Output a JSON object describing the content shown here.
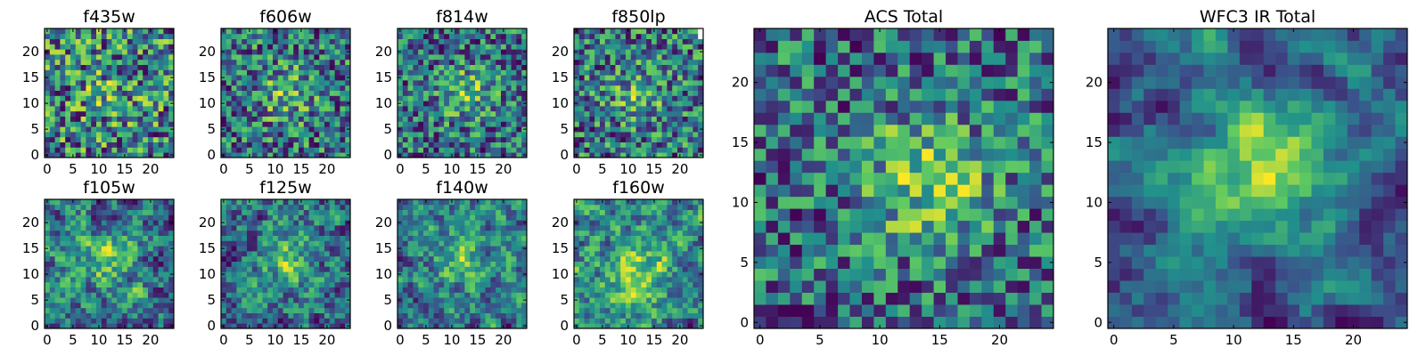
{
  "figure": {
    "description_layout": "2x4 grid of small per-filter cutouts plus two large total cutouts",
    "colormap": "viridis",
    "colormap_stops": [
      "#440154",
      "#3b528b",
      "#21918c",
      "#5ec962",
      "#fde725"
    ]
  },
  "chart_data": [
    {
      "type": "heatmap",
      "title": "f435w",
      "xlabel": "",
      "ylabel": "",
      "grid": [
        25,
        25
      ],
      "xlim": [
        0,
        24
      ],
      "ylim": [
        0,
        24
      ],
      "x_ticks": [
        "0",
        "5",
        "10",
        "15",
        "20"
      ],
      "y_ticks": [
        "0",
        "5",
        "10",
        "15",
        "20"
      ],
      "seed": 11,
      "smooth": 0,
      "blob": 0.15,
      "center": [
        12,
        12
      ]
    },
    {
      "type": "heatmap",
      "title": "f606w",
      "xlabel": "",
      "ylabel": "",
      "grid": [
        25,
        25
      ],
      "xlim": [
        0,
        24
      ],
      "ylim": [
        0,
        24
      ],
      "x_ticks": [
        "0",
        "5",
        "10",
        "15",
        "20"
      ],
      "y_ticks": [
        "0",
        "5",
        "10",
        "15",
        "20"
      ],
      "seed": 23,
      "smooth": 0,
      "blob": 0.35,
      "center": [
        12,
        12
      ]
    },
    {
      "type": "heatmap",
      "title": "f814w",
      "xlabel": "",
      "ylabel": "",
      "grid": [
        25,
        25
      ],
      "xlim": [
        0,
        24
      ],
      "ylim": [
        0,
        24
      ],
      "x_ticks": [
        "0",
        "5",
        "10",
        "15",
        "20"
      ],
      "y_ticks": [
        "0",
        "5",
        "10",
        "15",
        "20"
      ],
      "seed": 37,
      "smooth": 0,
      "blob": 0.4,
      "center": [
        13,
        12
      ]
    },
    {
      "type": "heatmap",
      "title": "f850lp",
      "xlabel": "",
      "ylabel": "",
      "grid": [
        25,
        25
      ],
      "xlim": [
        0,
        24
      ],
      "ylim": [
        0,
        24
      ],
      "x_ticks": [
        "0",
        "5",
        "10",
        "15",
        "20"
      ],
      "y_ticks": [
        "0",
        "5",
        "10",
        "15",
        "20"
      ],
      "seed": 41,
      "smooth": 0,
      "blob": 0.3,
      "center": [
        12,
        12
      ],
      "masked_top_right": true
    },
    {
      "type": "heatmap",
      "title": "f105w",
      "xlabel": "",
      "ylabel": "",
      "grid": [
        25,
        25
      ],
      "xlim": [
        0,
        24
      ],
      "ylim": [
        0,
        24
      ],
      "x_ticks": [
        "0",
        "5",
        "10",
        "15",
        "20"
      ],
      "y_ticks": [
        "0",
        "5",
        "10",
        "15",
        "20"
      ],
      "seed": 53,
      "smooth": 1,
      "blob": 0.25,
      "center": [
        12,
        13
      ]
    },
    {
      "type": "heatmap",
      "title": "f125w",
      "xlabel": "",
      "ylabel": "",
      "grid": [
        25,
        25
      ],
      "xlim": [
        0,
        24
      ],
      "ylim": [
        0,
        24
      ],
      "x_ticks": [
        "0",
        "5",
        "10",
        "15",
        "20"
      ],
      "y_ticks": [
        "0",
        "5",
        "10",
        "15",
        "20"
      ],
      "seed": 67,
      "smooth": 1,
      "blob": 0.3,
      "center": [
        12,
        13
      ]
    },
    {
      "type": "heatmap",
      "title": "f140w",
      "xlabel": "",
      "ylabel": "",
      "grid": [
        25,
        25
      ],
      "xlim": [
        0,
        24
      ],
      "ylim": [
        0,
        24
      ],
      "x_ticks": [
        "0",
        "5",
        "10",
        "15",
        "20"
      ],
      "y_ticks": [
        "0",
        "5",
        "10",
        "15",
        "20"
      ],
      "seed": 79,
      "smooth": 1,
      "blob": 0.3,
      "center": [
        12,
        13
      ]
    },
    {
      "type": "heatmap",
      "title": "f160w",
      "xlabel": "",
      "ylabel": "",
      "grid": [
        25,
        25
      ],
      "xlim": [
        0,
        24
      ],
      "ylim": [
        0,
        24
      ],
      "x_ticks": [
        "0",
        "5",
        "10",
        "15",
        "20"
      ],
      "y_ticks": [
        "0",
        "5",
        "10",
        "15",
        "20"
      ],
      "seed": 83,
      "smooth": 1,
      "blob": 0.45,
      "center": [
        12,
        10
      ]
    },
    {
      "type": "heatmap",
      "title": "ACS Total",
      "xlabel": "",
      "ylabel": "",
      "grid": [
        25,
        25
      ],
      "xlim": [
        0,
        24
      ],
      "ylim": [
        0,
        24
      ],
      "x_ticks": [
        "0",
        "5",
        "10",
        "15",
        "20"
      ],
      "y_ticks": [
        "0",
        "5",
        "10",
        "15",
        "20"
      ],
      "seed": 97,
      "smooth": 0,
      "blob": 0.55,
      "center": [
        14,
        12
      ]
    },
    {
      "type": "heatmap",
      "title": "WFC3 IR Total",
      "xlabel": "",
      "ylabel": "",
      "grid": [
        25,
        25
      ],
      "xlim": [
        0,
        24
      ],
      "ylim": [
        0,
        24
      ],
      "x_ticks": [
        "0",
        "5",
        "10",
        "15",
        "20"
      ],
      "y_ticks": [
        "0",
        "5",
        "10",
        "15",
        "20"
      ],
      "seed": 101,
      "smooth": 2,
      "blob": 0.55,
      "center": [
        13,
        13
      ]
    }
  ]
}
